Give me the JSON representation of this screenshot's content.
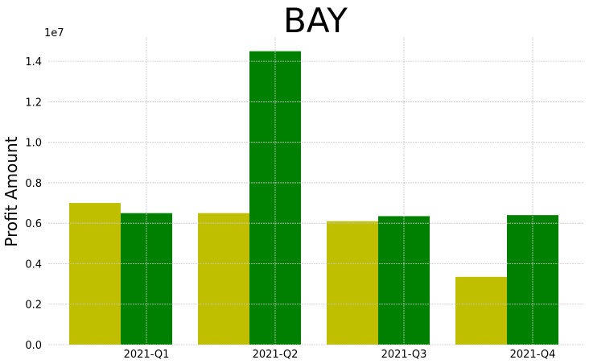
{
  "chart_data": {
    "type": "bar",
    "title": "BAY",
    "xlabel": "",
    "ylabel": "Profit Amount",
    "y_offset_label": "1e7",
    "categories": [
      "2021-Q1",
      "2021-Q2",
      "2021-Q3",
      "2021-Q4"
    ],
    "series": [
      {
        "color": "#bfbf00",
        "values": [
          7.0,
          6.5,
          6.1,
          3.35
        ]
      },
      {
        "color": "#008000",
        "values": [
          6.5,
          14.5,
          6.35,
          6.4
        ]
      }
    ],
    "yticks": [
      "0.0",
      "0.2",
      "0.4",
      "0.6",
      "0.8",
      "1.0",
      "1.2",
      "1.4"
    ],
    "ylim": [
      0,
      15.2
    ],
    "grid": true,
    "legend": "none"
  }
}
